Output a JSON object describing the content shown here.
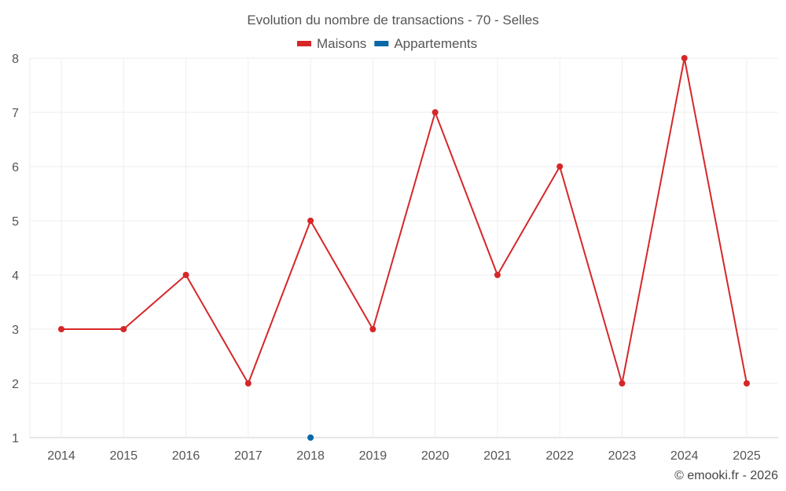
{
  "chart_data": {
    "type": "line",
    "title": "Evolution du nombre de transactions - 70 - Selles",
    "categories": [
      "2014",
      "2015",
      "2016",
      "2017",
      "2018",
      "2019",
      "2020",
      "2021",
      "2022",
      "2023",
      "2024",
      "2025"
    ],
    "series": [
      {
        "name": "Maisons",
        "color": "#d62728",
        "values": [
          3,
          3,
          4,
          2,
          5,
          3,
          7,
          4,
          6,
          2,
          8,
          2
        ]
      },
      {
        "name": "Appartements",
        "color": "#0868a8",
        "values": [
          null,
          null,
          null,
          null,
          1,
          null,
          null,
          null,
          null,
          null,
          null,
          null
        ]
      }
    ],
    "ylim": [
      1,
      8
    ],
    "yticks": [
      1,
      2,
      3,
      4,
      5,
      6,
      7,
      8
    ],
    "grid": true,
    "legend": "top-center",
    "xlabel": "",
    "ylabel": ""
  },
  "credit": "© emooki.fr - 2026"
}
